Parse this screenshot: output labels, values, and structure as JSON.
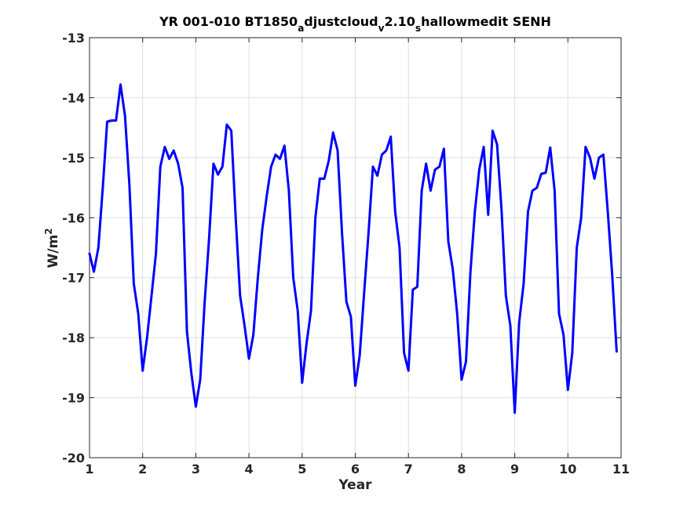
{
  "chart_data": {
    "type": "line",
    "title": {
      "segments": [
        {
          "text": "YR 001-010 BT1850",
          "sub": false
        },
        {
          "text": "a",
          "sub": true
        },
        {
          "text": "djustcloud",
          "sub": false
        },
        {
          "text": "v",
          "sub": true
        },
        {
          "text": "2.10",
          "sub": false
        },
        {
          "text": "s",
          "sub": true
        },
        {
          "text": "hallowmedit SENH",
          "sub": false
        }
      ]
    },
    "xlabel": "Year",
    "ylabel": "W/m",
    "ylabel_sup": "2",
    "xlim": [
      1,
      11
    ],
    "ylim": [
      -20,
      -13
    ],
    "xticks": [
      1,
      2,
      3,
      4,
      5,
      6,
      7,
      8,
      9,
      10,
      11
    ],
    "yticks": [
      -13,
      -14,
      -15,
      -16,
      -17,
      -18,
      -19,
      -20
    ],
    "grid": true,
    "line_color": "#0000ff",
    "series": [
      {
        "x": [
          1.0,
          1.083,
          1.167,
          1.25,
          1.333,
          1.417,
          1.5,
          1.583,
          1.667,
          1.75,
          1.833,
          1.917,
          2.0,
          2.083,
          2.167,
          2.25,
          2.333,
          2.417,
          2.5,
          2.583,
          2.667,
          2.75,
          2.833,
          2.917,
          3.0,
          3.083,
          3.167,
          3.25,
          3.333,
          3.417,
          3.5,
          3.583,
          3.667,
          3.75,
          3.833,
          3.917,
          4.0,
          4.083,
          4.167,
          4.25,
          4.333,
          4.417,
          4.5,
          4.583,
          4.667,
          4.75,
          4.833,
          4.917,
          5.0,
          5.083,
          5.167,
          5.25,
          5.333,
          5.417,
          5.5,
          5.583,
          5.667,
          5.75,
          5.833,
          5.917,
          6.0,
          6.083,
          6.167,
          6.25,
          6.333,
          6.417,
          6.5,
          6.583,
          6.667,
          6.75,
          6.833,
          6.917,
          7.0,
          7.083,
          7.167,
          7.25,
          7.333,
          7.417,
          7.5,
          7.583,
          7.667,
          7.75,
          7.833,
          7.917,
          8.0,
          8.083,
          8.167,
          8.25,
          8.333,
          8.417,
          8.5,
          8.583,
          8.667,
          8.75,
          8.833,
          8.917,
          9.0,
          9.083,
          9.167,
          9.25,
          9.333,
          9.417,
          9.5,
          9.583,
          9.667,
          9.75,
          9.833,
          9.917,
          10.0,
          10.083,
          10.167,
          10.25,
          10.333,
          10.417,
          10.5,
          10.583,
          10.667,
          10.75,
          10.833,
          10.917
        ],
        "y": [
          -16.6,
          -16.9,
          -16.5,
          -15.5,
          -14.4,
          -14.38,
          -14.38,
          -13.78,
          -14.3,
          -15.45,
          -17.1,
          -17.6,
          -18.55,
          -18.0,
          -17.3,
          -16.6,
          -15.15,
          -14.82,
          -15.02,
          -14.88,
          -15.1,
          -15.5,
          -17.9,
          -18.6,
          -19.15,
          -18.7,
          -17.4,
          -16.35,
          -15.1,
          -15.28,
          -15.15,
          -14.45,
          -14.55,
          -16.0,
          -17.3,
          -17.8,
          -18.35,
          -17.95,
          -17.0,
          -16.2,
          -15.65,
          -15.15,
          -14.95,
          -15.02,
          -14.8,
          -15.55,
          -17.0,
          -17.55,
          -18.75,
          -18.1,
          -17.55,
          -16.0,
          -15.35,
          -15.35,
          -15.05,
          -14.58,
          -14.88,
          -16.25,
          -17.4,
          -17.65,
          -18.8,
          -18.3,
          -17.25,
          -16.25,
          -15.15,
          -15.3,
          -14.95,
          -14.88,
          -14.65,
          -15.9,
          -16.5,
          -18.25,
          -18.55,
          -17.2,
          -17.15,
          -15.55,
          -15.1,
          -15.55,
          -15.2,
          -15.15,
          -14.85,
          -16.4,
          -16.85,
          -17.6,
          -18.7,
          -18.4,
          -16.9,
          -15.9,
          -15.2,
          -14.82,
          -15.95,
          -14.55,
          -14.78,
          -15.85,
          -17.3,
          -17.8,
          -19.25,
          -17.75,
          -17.1,
          -15.9,
          -15.55,
          -15.5,
          -15.27,
          -15.25,
          -14.83,
          -15.55,
          -17.6,
          -17.95,
          -18.87,
          -18.25,
          -16.5,
          -16.0,
          -14.82,
          -15.0,
          -15.35,
          -15.0,
          -14.95,
          -15.9,
          -16.95,
          -18.23
        ]
      }
    ]
  }
}
